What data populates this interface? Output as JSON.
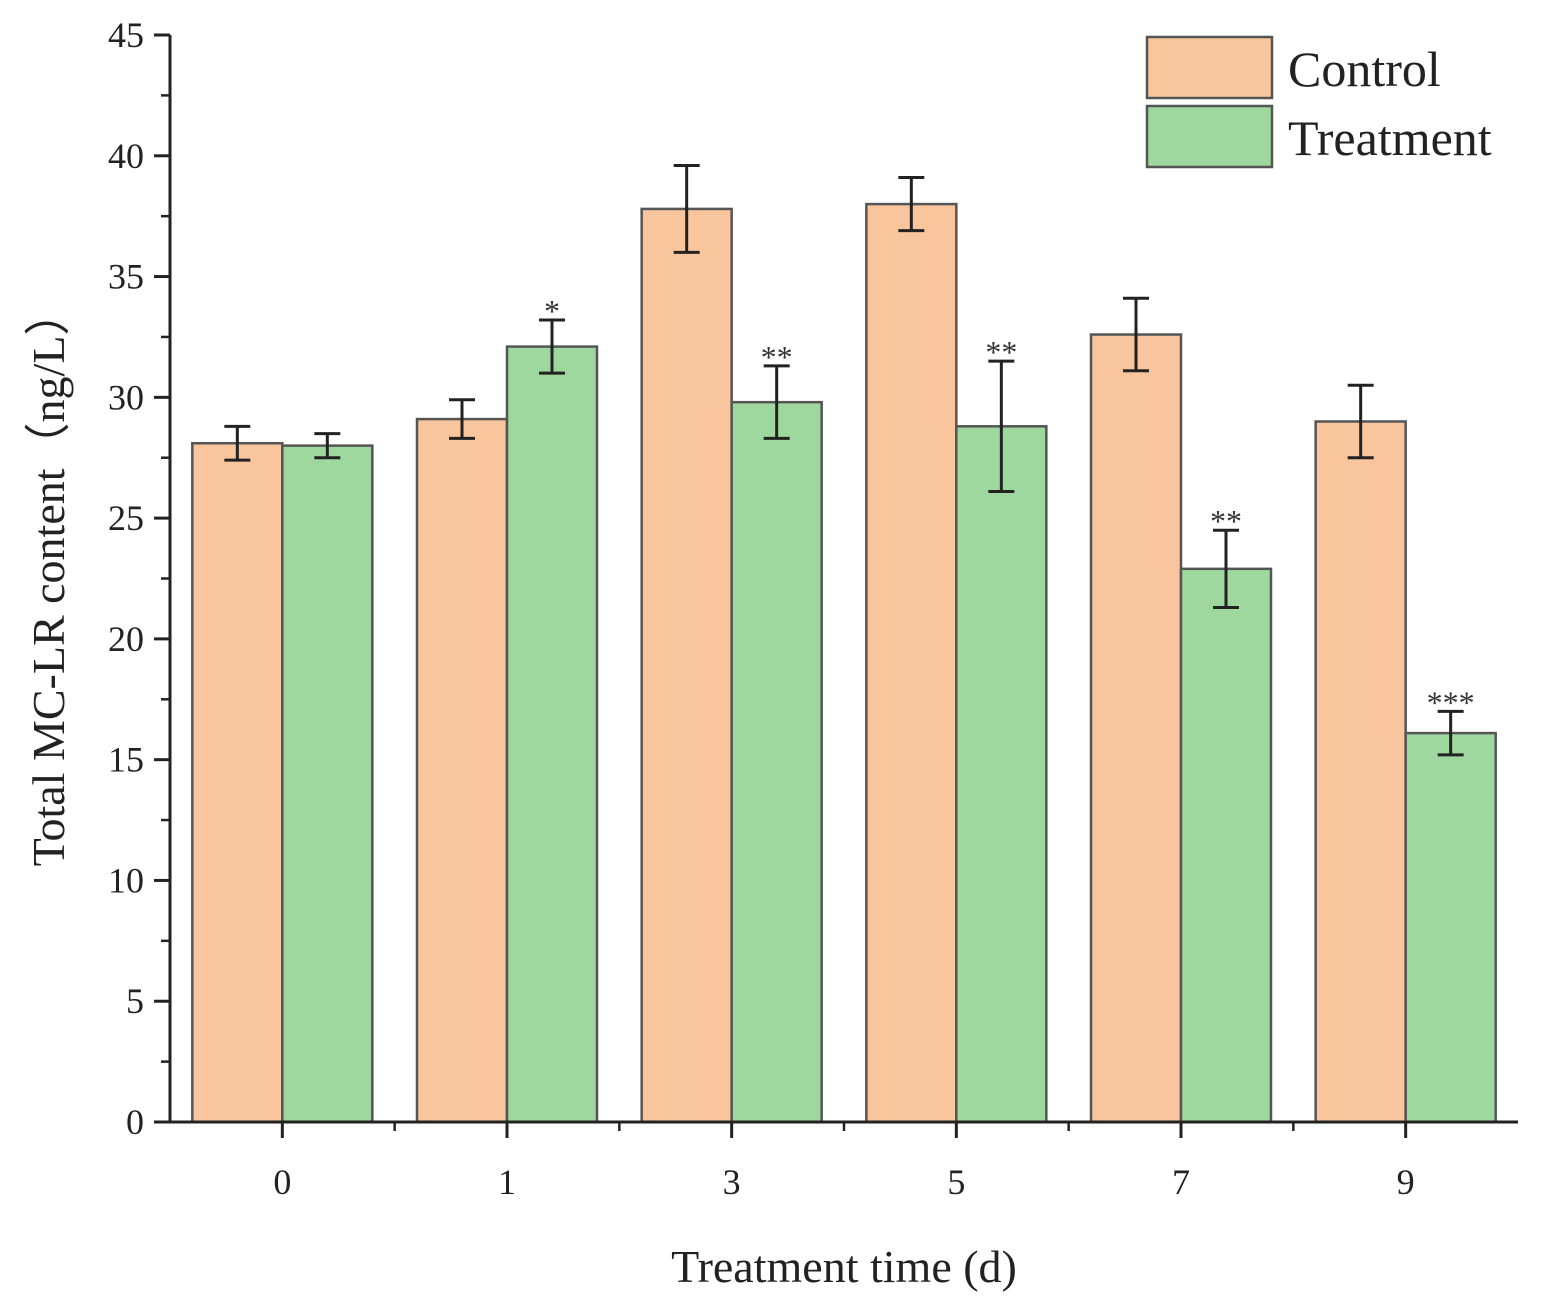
{
  "chart_data": {
    "type": "bar",
    "title": "",
    "xlabel": "Treatment time (d)",
    "ylabel": "Total MC-LR content（ng/L）",
    "ylim": [
      0,
      45
    ],
    "yticks": [
      0,
      5,
      10,
      15,
      20,
      25,
      30,
      35,
      40,
      45
    ],
    "categories": [
      "0",
      "1",
      "3",
      "5",
      "7",
      "9"
    ],
    "series": [
      {
        "name": "Control",
        "color": "#f8c59c",
        "values": [
          28.1,
          29.1,
          37.8,
          38.0,
          32.6,
          29.0
        ],
        "errors": [
          0.7,
          0.8,
          1.8,
          1.1,
          1.5,
          1.5
        ],
        "labels": [
          "",
          "",
          "",
          "",
          "",
          ""
        ]
      },
      {
        "name": "Treatment",
        "color": "#9fd89f",
        "values": [
          28.0,
          32.1,
          29.8,
          28.8,
          22.9,
          16.1
        ],
        "errors": [
          0.5,
          1.1,
          1.5,
          2.7,
          1.6,
          0.9
        ],
        "labels": [
          "",
          "*",
          "**",
          "**",
          "**",
          "***"
        ]
      }
    ],
    "legend": "top-right",
    "grid": false
  }
}
